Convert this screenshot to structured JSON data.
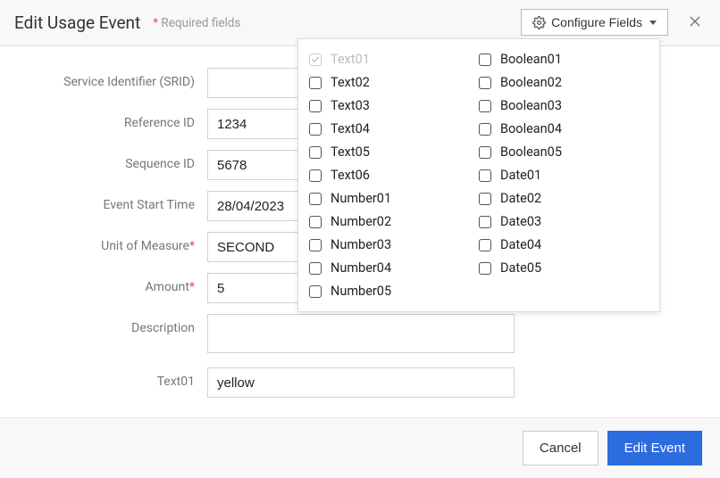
{
  "header": {
    "title": "Edit Usage Event",
    "required_hint_star": "*",
    "required_hint_text": " Required fields",
    "configure_label": "Configure Fields"
  },
  "form": {
    "srid": {
      "label": "Service Identifier (SRID)",
      "value": "",
      "readonly": true
    },
    "reference": {
      "label": "Reference ID",
      "value": "1234"
    },
    "sequence": {
      "label": "Sequence ID",
      "value": "5678"
    },
    "start_time": {
      "label": "Event Start Time",
      "value": "28/04/2023",
      "readonly": true
    },
    "uom": {
      "label": "Unit of Measure",
      "value": "SECOND",
      "required": true
    },
    "amount": {
      "label": "Amount",
      "value": "5",
      "required": true
    },
    "description": {
      "label": "Description",
      "value": ""
    },
    "text01": {
      "label": "Text01",
      "value": "yellow"
    }
  },
  "dropdown": {
    "col1": [
      {
        "label": "Text01",
        "checked": true,
        "disabled": true
      },
      {
        "label": "Text02"
      },
      {
        "label": "Text03"
      },
      {
        "label": "Text04"
      },
      {
        "label": "Text05"
      },
      {
        "label": "Text06"
      },
      {
        "label": "Number01"
      },
      {
        "label": "Number02"
      },
      {
        "label": "Number03"
      },
      {
        "label": "Number04"
      },
      {
        "label": "Number05"
      }
    ],
    "col2": [
      {
        "label": "Boolean01"
      },
      {
        "label": "Boolean02"
      },
      {
        "label": "Boolean03"
      },
      {
        "label": "Boolean04"
      },
      {
        "label": "Boolean05"
      },
      {
        "label": "Date01"
      },
      {
        "label": "Date02"
      },
      {
        "label": "Date03"
      },
      {
        "label": "Date04"
      },
      {
        "label": "Date05"
      }
    ]
  },
  "footer": {
    "cancel": "Cancel",
    "submit": "Edit Event"
  },
  "colors": {
    "primary": "#2d6cdf",
    "required_star": "#d9534f",
    "header_bg": "#f8f8f8",
    "border": "#d0d0d0"
  }
}
